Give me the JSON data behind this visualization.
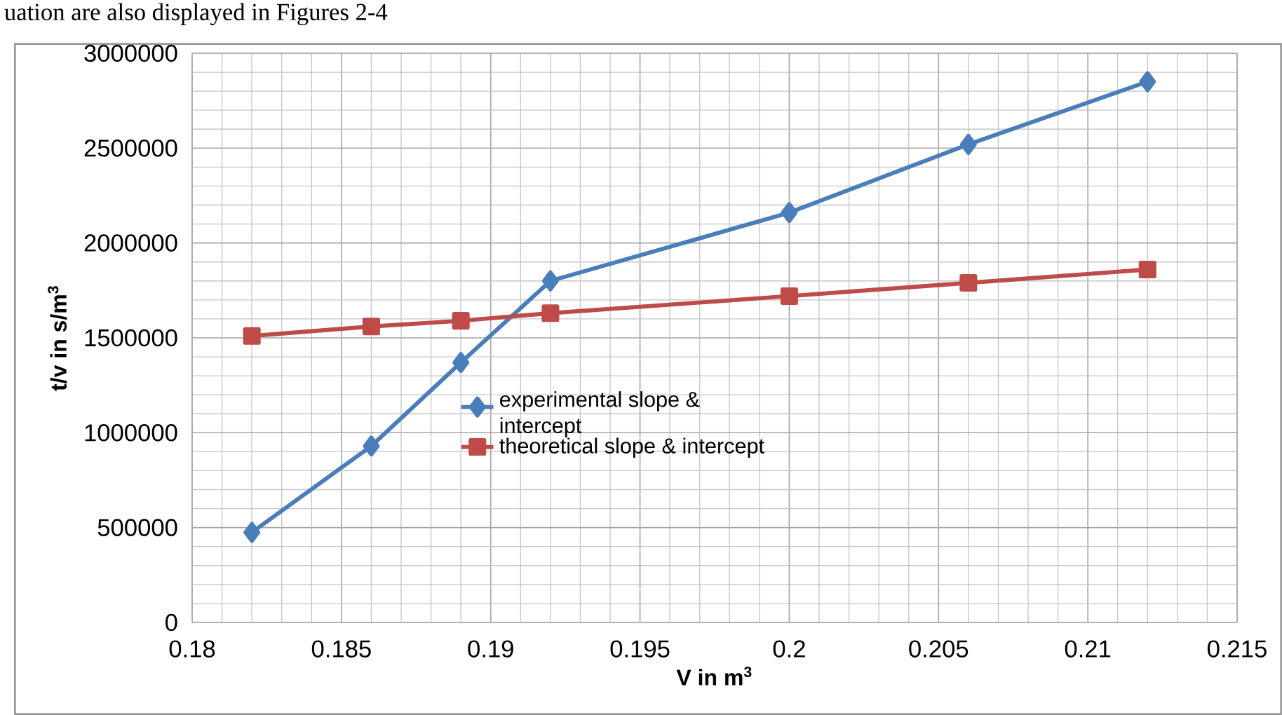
{
  "chart_data": {
    "type": "line",
    "annotations": [
      "uation are also displayed in Figures 2-4"
    ],
    "xlabel": "V in m$^{3}$",
    "ylabel": "t/v in s/m$^{3}$",
    "x": [
      0.182,
      0.186,
      0.189,
      0.192,
      0.2,
      0.206,
      0.212
    ],
    "series": [
      {
        "name": "experimental slope & intercept",
        "color": "#4a7ebb",
        "marker": "diamond",
        "values": [
          475000,
          930000,
          1370000,
          1800000,
          2160000,
          2520000,
          2850000
        ]
      },
      {
        "name": "theoretical slope & intercept",
        "color": "#be4b48",
        "marker": "square",
        "values": [
          1510000,
          1560000,
          1590000,
          1630000,
          1720000,
          1790000,
          1860000
        ]
      }
    ],
    "xlim": [
      0.18,
      0.215
    ],
    "xticks": [
      0.18,
      0.185,
      0.19,
      0.195,
      0.2,
      0.205,
      0.21,
      0.215
    ],
    "ylim": [
      0,
      3000000
    ],
    "yticks": [
      0,
      500000,
      1000000,
      1500000,
      2000000,
      2500000,
      3000000
    ],
    "grid": true,
    "legend": "center",
    "line_style": "solid"
  }
}
